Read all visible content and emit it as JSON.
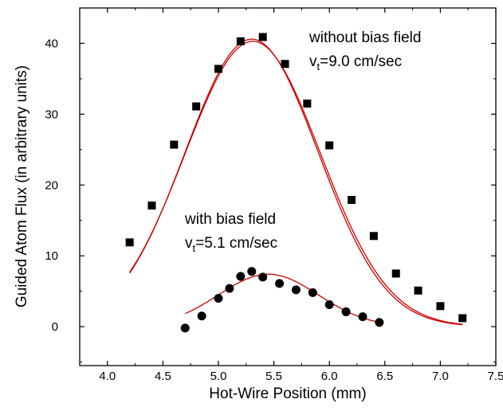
{
  "chart_data": {
    "type": "scatter",
    "title": "",
    "xlabel": "Hot-Wire Position (mm)",
    "ylabel": "Guided Atom Flux (in arbitrary units)",
    "xlim": [
      3.75,
      7.5
    ],
    "ylim": [
      -5.5,
      45
    ],
    "x_ticks": [
      4.0,
      4.5,
      5.0,
      5.5,
      6.0,
      6.5,
      7.0,
      7.5
    ],
    "x_tick_labels": [
      "4.0",
      "4.5",
      "5.0",
      "5.5",
      "6.0",
      "6.5",
      "7.0",
      "7.5"
    ],
    "y_ticks": [
      0,
      10,
      20,
      30,
      40
    ],
    "y_tick_labels": [
      "0",
      "10",
      "20",
      "30",
      "40"
    ],
    "grid": false,
    "annotations": [
      {
        "id": "without",
        "line1": "without bias field",
        "line2_prefix": "v",
        "line2_sub": "t",
        "line2_suffix": "=9.0 cm/sec"
      },
      {
        "id": "with",
        "line1": "with bias field",
        "line2_prefix": "v",
        "line2_sub": "t",
        "line2_suffix": "=5.1 cm/sec"
      }
    ],
    "series": [
      {
        "marker": "square",
        "color": "#000000",
        "x": [
          4.2,
          4.4,
          4.6,
          4.8,
          5.0,
          5.2,
          5.4,
          5.6,
          5.8,
          6.0,
          6.2,
          6.4,
          6.6,
          6.8,
          7.0,
          7.2
        ],
        "y": [
          11.9,
          17.1,
          25.7,
          31.1,
          36.4,
          40.3,
          40.9,
          37.1,
          31.5,
          25.6,
          17.9,
          12.8,
          7.5,
          5.1,
          2.9,
          1.2
        ]
      },
      {
        "marker": "circle",
        "color": "#000000",
        "x": [
          4.7,
          4.85,
          5.0,
          5.1,
          5.2,
          5.3,
          5.4,
          5.55,
          5.7,
          5.85,
          6.0,
          6.15,
          6.3,
          6.45
        ],
        "y": [
          -0.2,
          1.5,
          4.0,
          5.4,
          7.1,
          7.8,
          7.0,
          6.1,
          5.2,
          4.8,
          3.1,
          2.1,
          1.4,
          0.6
        ]
      }
    ],
    "fits": [
      {
        "color": "#cc0000",
        "amplitude": 40.6,
        "center": 5.3,
        "sigma": 0.6,
        "offset": 0,
        "x_range": [
          4.2,
          7.2
        ]
      },
      {
        "color": "#cc0000",
        "amplitude": 40.3,
        "center": 5.31,
        "sigma": 0.61,
        "offset": 0,
        "x_range": [
          4.2,
          7.2
        ]
      },
      {
        "color": "#cc0000",
        "amplitude": 7.4,
        "center": 5.45,
        "sigma": 0.45,
        "offset": 0,
        "x_range": [
          4.7,
          6.45
        ]
      }
    ]
  }
}
